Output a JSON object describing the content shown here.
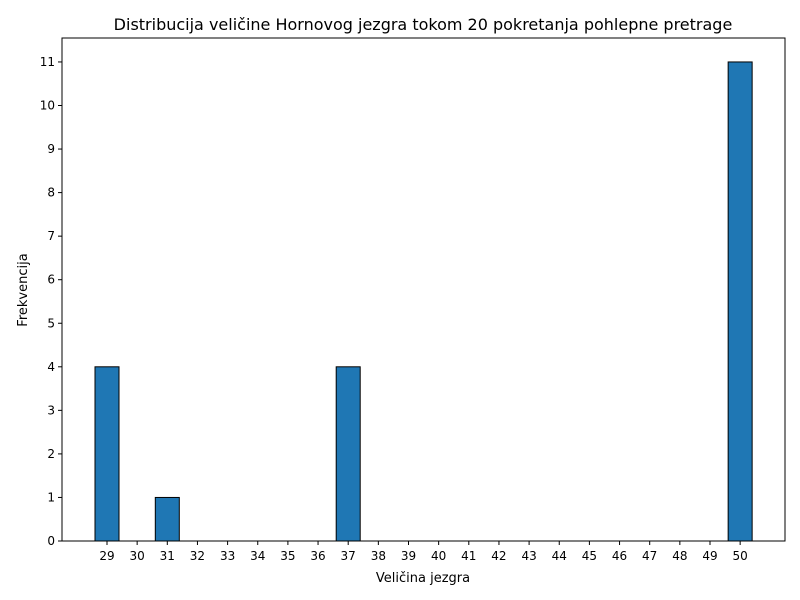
{
  "chart_data": {
    "type": "bar",
    "title": "Distribucija veličine Hornovog jezgra tokom 20 pokretanja pohlepne pretrage",
    "xlabel": "Veličina jezgra",
    "ylabel": "Frekvencija",
    "categories": [
      "29",
      "30",
      "31",
      "32",
      "33",
      "34",
      "35",
      "36",
      "37",
      "38",
      "39",
      "40",
      "41",
      "42",
      "43",
      "44",
      "45",
      "46",
      "47",
      "48",
      "49",
      "50"
    ],
    "values": [
      4,
      0,
      1,
      0,
      0,
      0,
      0,
      0,
      4,
      0,
      0,
      0,
      0,
      0,
      0,
      0,
      0,
      0,
      0,
      0,
      0,
      11
    ],
    "ylim": [
      0,
      11.55
    ],
    "yticks": [
      "0",
      "1",
      "2",
      "3",
      "4",
      "5",
      "6",
      "7",
      "8",
      "9",
      "10",
      "11"
    ],
    "grid": false,
    "colors": {
      "bar": "#1f77b4",
      "edge": "#000000"
    }
  }
}
